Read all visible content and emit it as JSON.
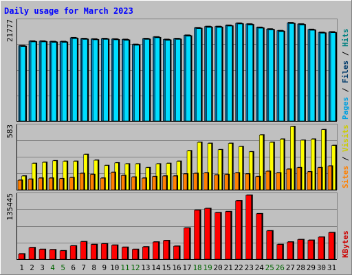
{
  "chart_data": {
    "type": "bar",
    "title": "Daily usage for March 2023",
    "days": [
      "1",
      "2",
      "3",
      "4",
      "5",
      "6",
      "7",
      "8",
      "9",
      "10",
      "11",
      "12",
      "13",
      "14",
      "15",
      "16",
      "17",
      "18",
      "19",
      "20",
      "21",
      "22",
      "23",
      "24",
      "25",
      "26",
      "27",
      "28",
      "29",
      "30",
      "31"
    ],
    "weekend_days": [
      "4",
      "5",
      "11",
      "12",
      "18",
      "19",
      "25",
      "26"
    ],
    "panels": [
      {
        "ymax_label": "21777",
        "ymax": 21777,
        "series": [
          {
            "name": "Pages",
            "color": "#0080c0",
            "values": [
              18100,
              19200,
              19200,
              19100,
              19100,
              20000,
              19800,
              19700,
              19800,
              19700,
              19600,
              18400,
              19800,
              20200,
              19600,
              19800,
              20600,
              22400,
              22700,
              22700,
              23000,
              23500,
              23300,
              22500,
              22100,
              21700,
              23600,
              23300,
              22000,
              21300,
              21400
            ]
          },
          {
            "name": "Files",
            "color": "#00a0e0",
            "values": [
              18000,
              19100,
              19100,
              19000,
              19000,
              19900,
              19700,
              19600,
              19700,
              19600,
              19500,
              18300,
              19700,
              20100,
              19500,
              19700,
              20500,
              22300,
              22600,
              22600,
              22900,
              23400,
              23200,
              22400,
              22000,
              21600,
              23500,
              23200,
              21900,
              21200,
              21300
            ]
          },
          {
            "name": "Hits",
            "color": "#00ddff",
            "values": [
              17900,
              19000,
              19000,
              18900,
              18900,
              19800,
              19600,
              19500,
              19600,
              19500,
              19400,
              18200,
              19600,
              20000,
              19400,
              19600,
              20400,
              22200,
              22500,
              22500,
              22800,
              23300,
              23100,
              22300,
              21900,
              21500,
              23400,
              23100,
              21800,
              21100,
              21200
            ]
          }
        ],
        "legend": [
          "Pages",
          "Files",
          "Hits"
        ],
        "legend_colors": [
          "#00a0e0",
          "#003a6a",
          "#008080"
        ]
      },
      {
        "ymax_label": "583",
        "ymax": 583,
        "series": [
          {
            "name": "Visits",
            "color": "#ffff00",
            "values": [
              130,
              250,
              260,
              275,
              270,
              270,
              335,
              280,
              230,
              255,
              245,
              245,
              210,
              245,
              250,
              270,
              370,
              450,
              440,
              380,
              440,
              410,
              360,
              520,
              450,
              480,
              600,
              470,
              480,
              570,
              420
            ]
          },
          {
            "name": "Sites",
            "color": "#ff8000",
            "values": [
              90,
              100,
              110,
              110,
              105,
              115,
              155,
              145,
              110,
              165,
              135,
              120,
              110,
              125,
              130,
              130,
              150,
              155,
              160,
              140,
              145,
              160,
              150,
              125,
              175,
              160,
              195,
              210,
              170,
              210,
              225
            ]
          }
        ],
        "legend": [
          "Sites",
          "Visits"
        ],
        "legend_colors": [
          "#ff8000",
          "#cccc00"
        ]
      },
      {
        "ymax_label": "135445",
        "ymax": 135445,
        "series": [
          {
            "name": "KBytes",
            "color": "#ff0000",
            "values": [
              15000,
              33000,
              28000,
              27000,
              24000,
              38000,
              50000,
              42000,
              44000,
              40000,
              34000,
              28000,
              35000,
              49000,
              53000,
              37000,
              89000,
              140000,
              145000,
              133000,
              136000,
              167000,
              183000,
              130000,
              81000,
              42000,
              49000,
              56000,
              54000,
              63000,
              76000
            ]
          }
        ],
        "legend": [
          "KBytes"
        ],
        "legend_colors": [
          "#cc0000"
        ]
      }
    ],
    "grid": true
  },
  "colors": {
    "background": "#c0c0c0",
    "plot_background": "#c0c0c0",
    "title_color": "#0000ff",
    "weekday_label": "#000000",
    "weekend_label": "#006400"
  }
}
